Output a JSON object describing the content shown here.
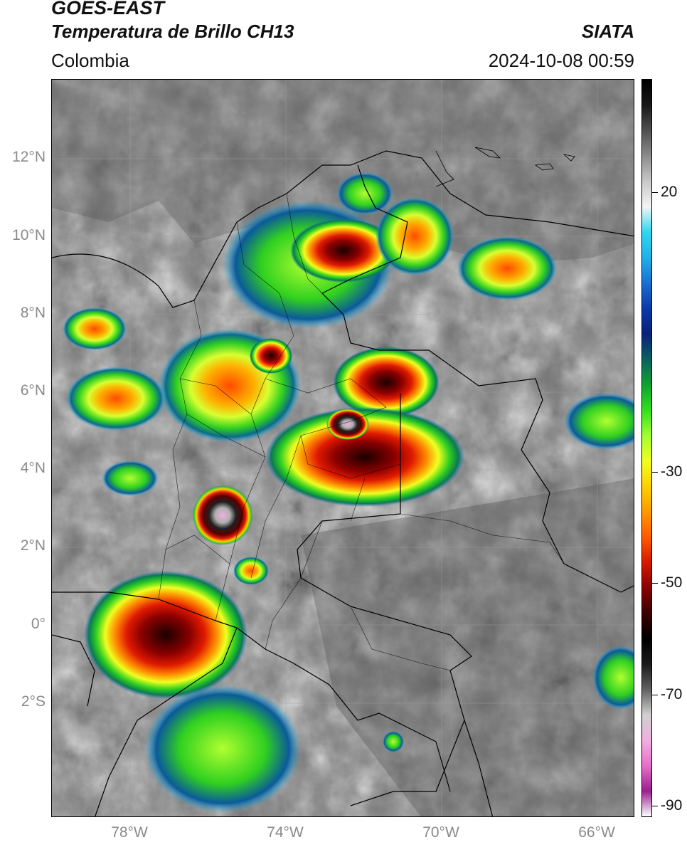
{
  "header": {
    "satellite": "GOES-EAST",
    "product": "Temperatura de Brillo CH13",
    "region": "Colombia",
    "agency": "SIATA",
    "datetime": "2024-10-08 00:59"
  },
  "axes": {
    "lat_labels": [
      "12°N",
      "10°N",
      "8°N",
      "6°N",
      "4°N",
      "2°N",
      "0°",
      "2°S"
    ],
    "lon_labels": [
      "78°W",
      "74°W",
      "70°W",
      "66°W"
    ]
  },
  "colorbar": {
    "labels": [
      "20",
      "-30",
      "-50",
      "-70",
      "-90"
    ],
    "colors": [
      "#ffffff",
      "#9a1f8f",
      "#e86fc8",
      "#f0b0e0",
      "#d0d0d0",
      "#606060",
      "#1a1a1a",
      "#000000",
      "#3a0000",
      "#8a0000",
      "#d41a00",
      "#ff5a00",
      "#ff9a00",
      "#ffd000",
      "#f0ff20",
      "#a0ff30",
      "#30e020",
      "#10a030",
      "#0a6060",
      "#0a1f7a",
      "#0a3aa8",
      "#1a70d0",
      "#20b0e8",
      "#30d8f0",
      "#f4f4f4",
      "#c8c8c8",
      "#8c8c8c",
      "#505050",
      "#181818",
      "#000000"
    ]
  }
}
